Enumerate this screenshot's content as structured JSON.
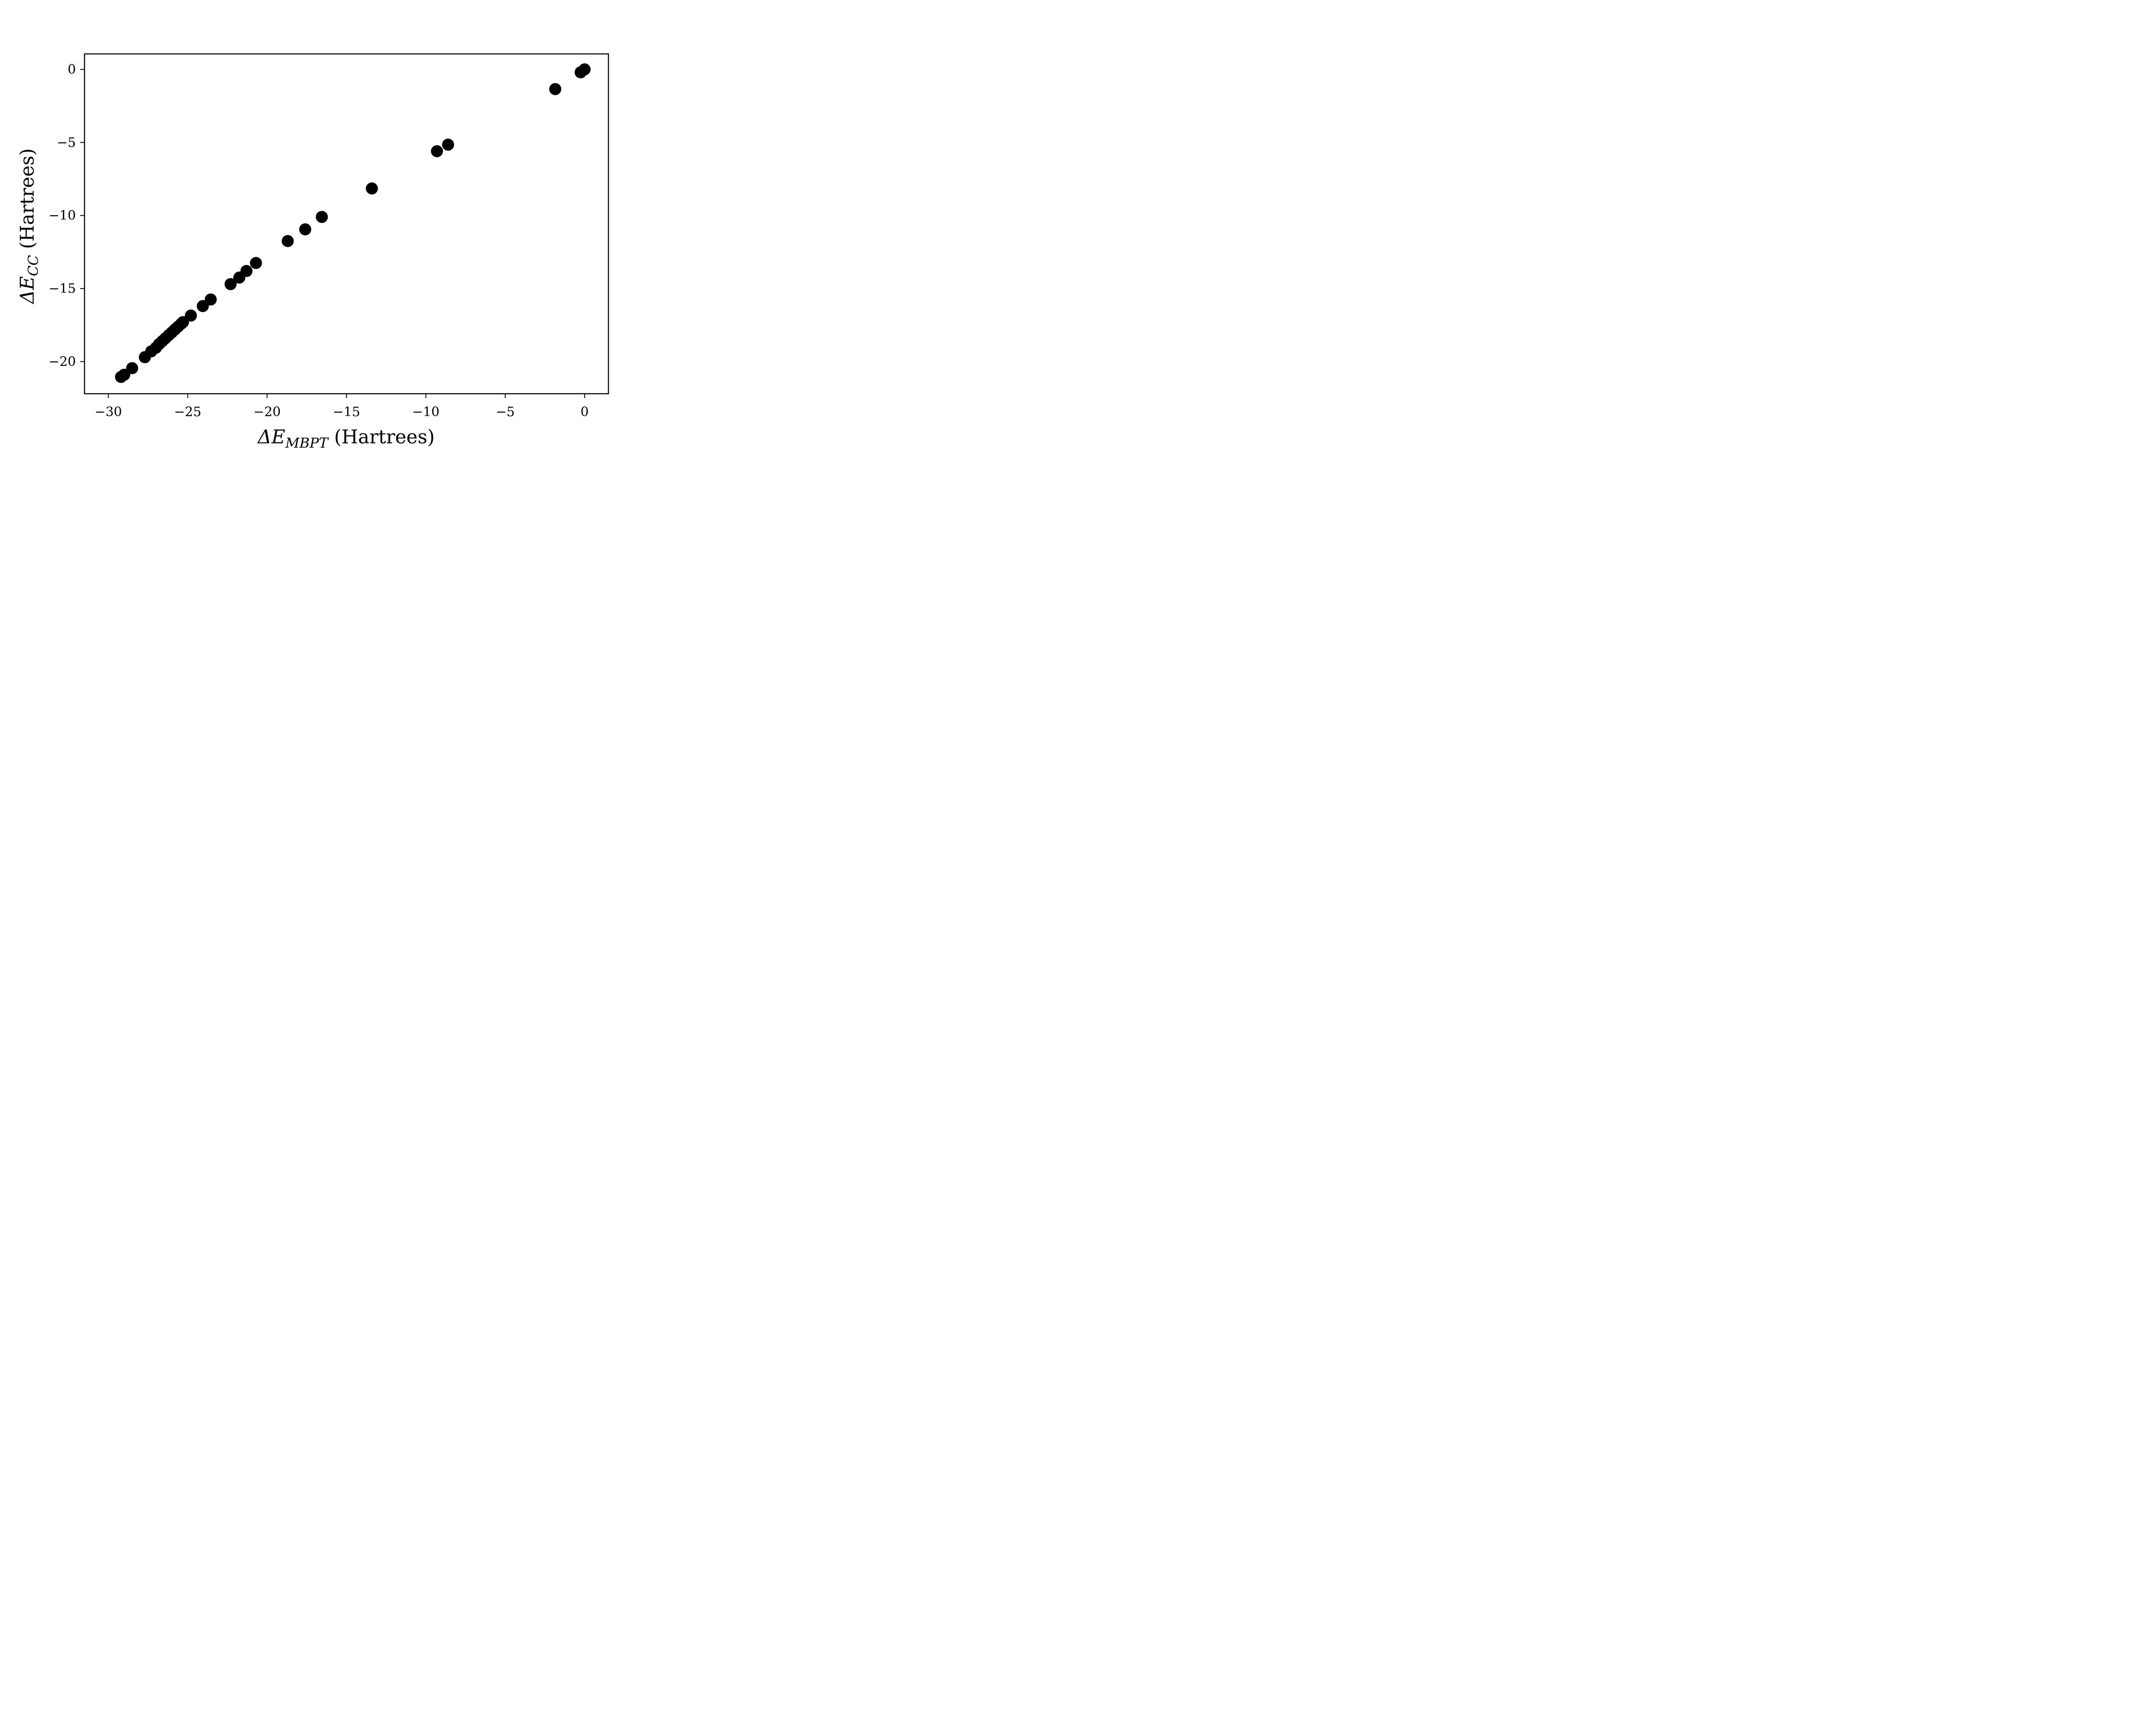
{
  "chart_data": {
    "type": "scatter",
    "xlabel": {
      "prefix": "ΔE",
      "subscript": "MBPT",
      "suffix": " (Hartrees)"
    },
    "ylabel": {
      "prefix": "ΔE",
      "subscript": "CC",
      "suffix": " (Hartrees)"
    },
    "xlim": [
      -31.5,
      1.5
    ],
    "ylim": [
      -22.2,
      1.06
    ],
    "xticks": [
      -30,
      -25,
      -20,
      -15,
      -10,
      -5,
      0
    ],
    "yticks": [
      0,
      -5,
      -10,
      -15,
      -20
    ],
    "xtick_labels": [
      "−30",
      "−25",
      "−20",
      "−15",
      "−10",
      "−5",
      "0"
    ],
    "ytick_labels": [
      "0",
      "−5",
      "−10",
      "−15",
      "−20"
    ],
    "grid": false,
    "marker_color": "#000000",
    "points": [
      {
        "x": -29.2,
        "y": -21.05
      },
      {
        "x": -29.0,
        "y": -20.9
      },
      {
        "x": -28.5,
        "y": -20.45
      },
      {
        "x": -27.7,
        "y": -19.7
      },
      {
        "x": -27.3,
        "y": -19.3
      },
      {
        "x": -27.0,
        "y": -19.05
      },
      {
        "x": -26.8,
        "y": -18.8
      },
      {
        "x": -26.6,
        "y": -18.6
      },
      {
        "x": -26.4,
        "y": -18.4
      },
      {
        "x": -26.2,
        "y": -18.2
      },
      {
        "x": -26.0,
        "y": -18.0
      },
      {
        "x": -25.8,
        "y": -17.8
      },
      {
        "x": -25.6,
        "y": -17.6
      },
      {
        "x": -25.4,
        "y": -17.4
      },
      {
        "x": -25.3,
        "y": -17.3
      },
      {
        "x": -24.8,
        "y": -16.85
      },
      {
        "x": -24.05,
        "y": -16.2
      },
      {
        "x": -23.55,
        "y": -15.75
      },
      {
        "x": -22.3,
        "y": -14.7
      },
      {
        "x": -21.75,
        "y": -14.25
      },
      {
        "x": -21.3,
        "y": -13.8
      },
      {
        "x": -20.7,
        "y": -13.25
      },
      {
        "x": -18.7,
        "y": -11.75
      },
      {
        "x": -17.6,
        "y": -10.95
      },
      {
        "x": -16.55,
        "y": -10.1
      },
      {
        "x": -13.4,
        "y": -8.15
      },
      {
        "x": -9.3,
        "y": -5.6
      },
      {
        "x": -8.6,
        "y": -5.15
      },
      {
        "x": -1.85,
        "y": -1.35
      },
      {
        "x": -0.25,
        "y": -0.2
      },
      {
        "x": 0.0,
        "y": 0.0
      }
    ]
  }
}
